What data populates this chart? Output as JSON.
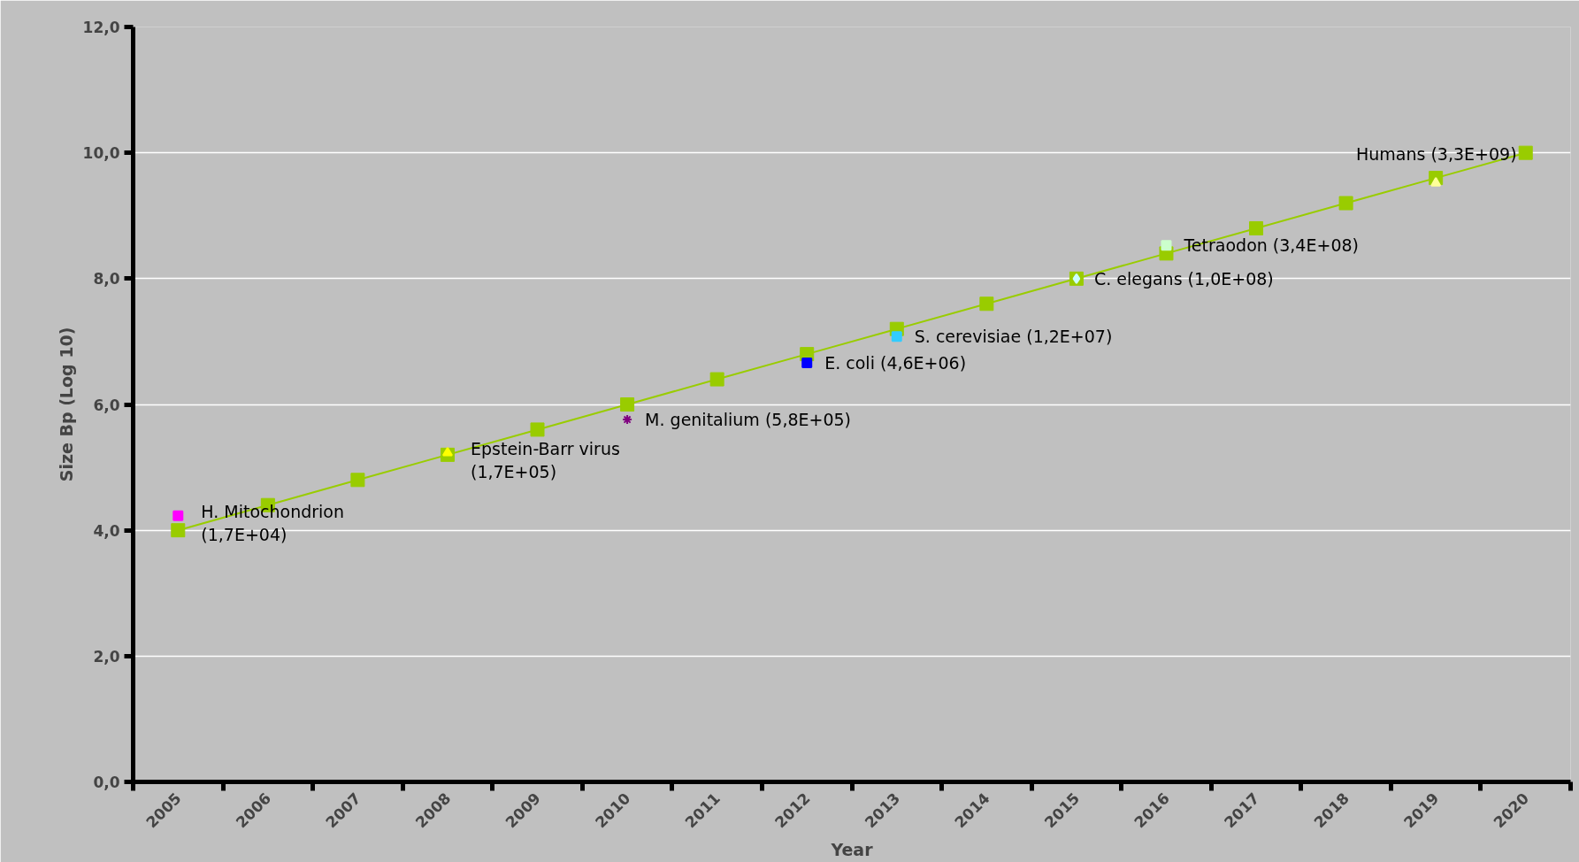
{
  "chart_data": {
    "type": "line",
    "xlabel": "Year",
    "ylabel": "Size Bp (Log 10)",
    "categories": [
      "2005",
      "2006",
      "2007",
      "2008",
      "2009",
      "2010",
      "2011",
      "2012",
      "2013",
      "2014",
      "2015",
      "2016",
      "2017",
      "2018",
      "2019",
      "2020"
    ],
    "ylim": [
      0,
      12
    ],
    "yticks": [
      {
        "value": 0,
        "label": "0,0"
      },
      {
        "value": 2,
        "label": "2,0"
      },
      {
        "value": 4,
        "label": "4,0"
      },
      {
        "value": 6,
        "label": "6,0"
      },
      {
        "value": 8,
        "label": "8,0"
      },
      {
        "value": 10,
        "label": "10,0"
      },
      {
        "value": 12,
        "label": "12,0"
      }
    ],
    "grid": "y",
    "marker": "square",
    "line_style": "solid",
    "series": [
      {
        "color": "#99cc00",
        "values": [
          4.0,
          4.4,
          4.8,
          5.2,
          5.6,
          6.0,
          6.4,
          6.8,
          7.2,
          7.6,
          8.0,
          8.4,
          8.8,
          9.2,
          9.6,
          10.0
        ]
      },
      {
        "type": "scatter",
        "marker": "square",
        "color": "#ff00ff",
        "values": [
          4.23,
          null,
          null,
          null,
          null,
          null,
          null,
          null,
          null,
          null,
          null,
          null,
          null,
          null,
          null,
          null
        ]
      },
      {
        "type": "scatter",
        "marker": "triangle",
        "color": "#ffff00",
        "values": [
          null,
          null,
          null,
          5.23,
          null,
          null,
          null,
          null,
          null,
          null,
          null,
          null,
          null,
          null,
          null,
          null
        ]
      },
      {
        "type": "scatter",
        "marker": "cross",
        "color": "#800080",
        "values": [
          null,
          null,
          null,
          null,
          null,
          5.76,
          null,
          null,
          null,
          null,
          null,
          null,
          null,
          null,
          null,
          null
        ]
      },
      {
        "type": "scatter",
        "marker": "square",
        "color": "#0000ff",
        "values": [
          null,
          null,
          null,
          null,
          null,
          null,
          null,
          6.66,
          null,
          null,
          null,
          null,
          null,
          null,
          null,
          null
        ]
      },
      {
        "type": "scatter",
        "marker": "square",
        "color": "#33ccff",
        "values": [
          null,
          null,
          null,
          null,
          null,
          null,
          null,
          null,
          7.08,
          null,
          null,
          null,
          null,
          null,
          null,
          null
        ]
      },
      {
        "type": "scatter",
        "marker": "diamond",
        "color": "#ccffff",
        "values": [
          null,
          null,
          null,
          null,
          null,
          null,
          null,
          null,
          null,
          null,
          8.0,
          null,
          null,
          null,
          null,
          null
        ]
      },
      {
        "type": "scatter",
        "marker": "square",
        "color": "#ccffcc",
        "values": [
          null,
          null,
          null,
          null,
          null,
          null,
          null,
          null,
          null,
          null,
          null,
          8.53,
          null,
          null,
          null,
          null
        ]
      },
      {
        "type": "scatter",
        "marker": "triangle",
        "color": "#ffff99",
        "values": [
          null,
          null,
          null,
          null,
          null,
          null,
          null,
          null,
          null,
          null,
          null,
          null,
          null,
          null,
          9.52,
          null
        ]
      }
    ],
    "annotations": [
      {
        "text": "H. Mitochondrion\n(1,7E+04)",
        "x": "2005",
        "y": 4.23
      },
      {
        "text": "Epstein-Barr virus\n(1,7E+05)",
        "x": "2008",
        "y": 5.23
      },
      {
        "text": "M. genitalium  (5,8E+05)",
        "x": "2010",
        "y": 5.76
      },
      {
        "text": "E. coli  (4,6E+06)",
        "x": "2012",
        "y": 6.66
      },
      {
        "text": "S. cerevisiae  (1,2E+07)",
        "x": "2013",
        "y": 7.08
      },
      {
        "text": "C. elegans  (1,0E+08)",
        "x": "2015",
        "y": 8.0
      },
      {
        "text": "Tetraodon (3,4E+08)",
        "x": "2016",
        "y": 8.53
      },
      {
        "text": "Humans (3,3E+09)",
        "x": "2019",
        "y": 9.52
      }
    ]
  }
}
